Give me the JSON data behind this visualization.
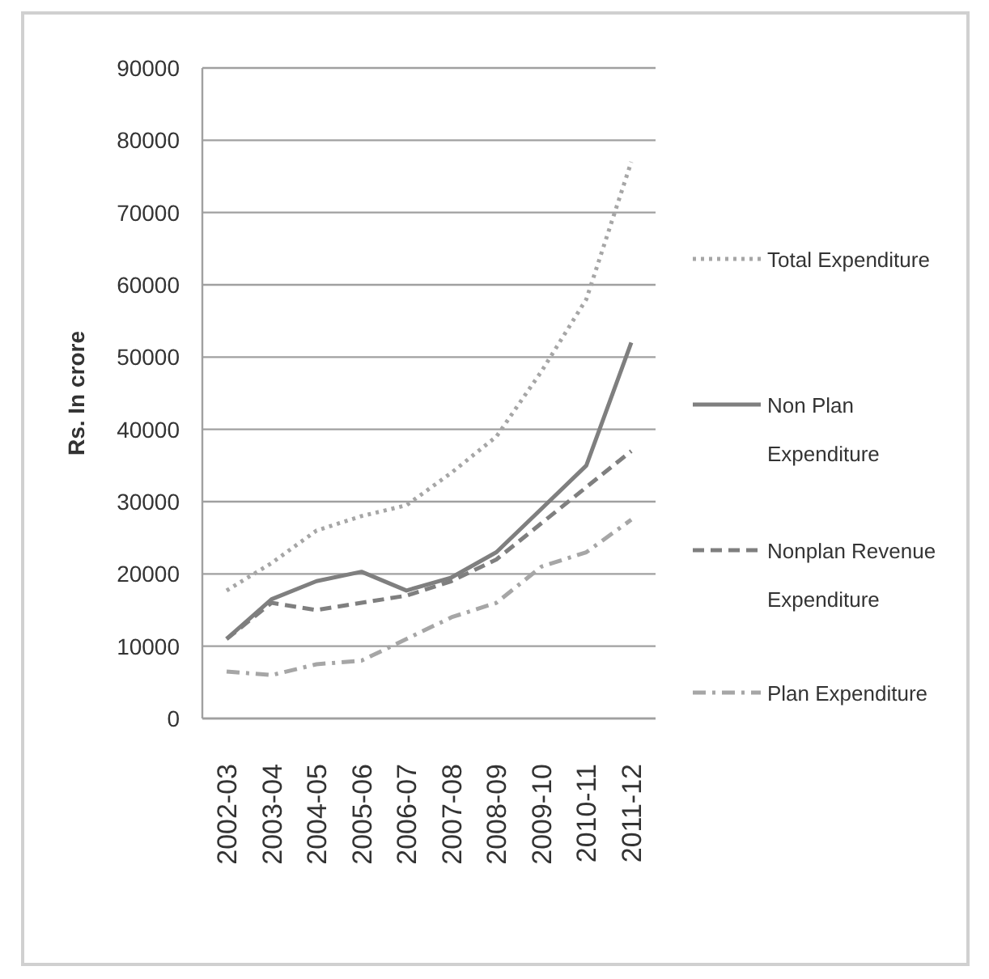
{
  "chart_data": {
    "type": "line",
    "ylabel": "Rs. In crore",
    "categories": [
      "2002-03",
      "2003-04",
      "2004-05",
      "2005-06",
      "2006-07",
      "2007-08",
      "2008-09",
      "2009-10",
      "2010-11",
      "2011-12"
    ],
    "series": [
      {
        "name": "Total Expenditure",
        "color": "#a6a6a6",
        "line_style": "dotted",
        "values": [
          17700,
          21500,
          26000,
          28000,
          29500,
          34000,
          39000,
          48000,
          58000,
          77000
        ]
      },
      {
        "name": "Non Plan Expenditure",
        "color": "#7f7f7f",
        "line_style": "solid",
        "values": [
          11000,
          16500,
          19000,
          20300,
          17700,
          19500,
          23000,
          29000,
          35000,
          52000
        ]
      },
      {
        "name": "Nonplan Revenue Expenditure",
        "color": "#7f7f7f",
        "line_style": "dashed",
        "values": [
          11000,
          16000,
          15000,
          16000,
          17000,
          19000,
          22000,
          27000,
          32000,
          37000
        ]
      },
      {
        "name": "Plan Expenditure",
        "color": "#a6a6a6",
        "line_style": "dashdot",
        "values": [
          6500,
          6000,
          7500,
          8000,
          11000,
          14000,
          16000,
          21000,
          23000,
          27500
        ]
      }
    ],
    "ylim": [
      0,
      90000
    ],
    "yticks": [
      0,
      10000,
      20000,
      30000,
      40000,
      50000,
      60000,
      70000,
      80000,
      90000
    ],
    "grid": "y",
    "legend": "right"
  }
}
